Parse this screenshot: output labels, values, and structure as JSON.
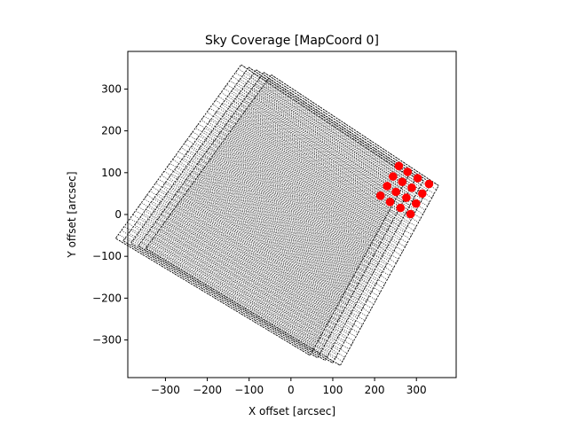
{
  "chart_data": {
    "type": "scatter",
    "title": "Sky Coverage [MapCoord 0]",
    "xlabel": "X offset [arcsec]",
    "ylabel": "Y offset [arcsec]",
    "xlim": [
      -390,
      395
    ],
    "ylim": [
      -390,
      390
    ],
    "xticks": [
      -300,
      -200,
      -100,
      0,
      100,
      200,
      300
    ],
    "yticks": [
      -300,
      -200,
      -100,
      0,
      100,
      200,
      300
    ],
    "aspect": "equal",
    "grid": false,
    "series": [
      {
        "style": "scan-trace",
        "color": "#000000",
        "description_of_shape": "rotated square raster scan footprints",
        "corners": [
          [
            -65,
            340
          ],
          [
            335,
            75
          ],
          [
            100,
            -355
          ],
          [
            -365,
            -75
          ]
        ],
        "offsets": [
          [
            0,
            0
          ],
          [
            -18,
            6
          ],
          [
            -36,
            12
          ],
          [
            -54,
            18
          ],
          [
            18,
            -6
          ]
        ]
      },
      {
        "style": "points",
        "color": "#ff0000",
        "x": [
          258,
          279,
          303,
          330,
          244,
          266,
          289,
          314,
          230,
          251,
          276,
          299,
          214,
          237,
          262,
          286
        ],
        "y": [
          116,
          102,
          87,
          73,
          91,
          78,
          64,
          50,
          68,
          54,
          40,
          26,
          45,
          30,
          16,
          1
        ]
      }
    ]
  }
}
